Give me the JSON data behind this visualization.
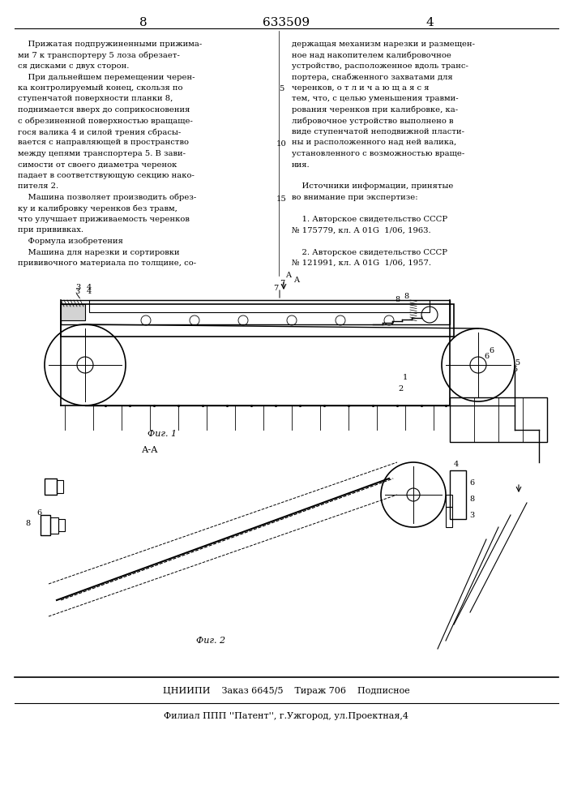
{
  "page_num_left": "8",
  "page_num_center": "633509",
  "page_num_right": "4",
  "col_left_text": [
    "    Прижатая подпружиненными прижима-",
    "ми 7 к транспортеру 5 лоза обрезает-",
    "ся дисками с двух сторон.",
    "    При дальнейшем перемещении черен-",
    "ка контролируемый конец, скользя по",
    "ступенчатой поверхности планки 8,",
    "поднимается вверх до соприкосновения",
    "с обрезиненной поверхностью вращаще-",
    "гося валика 4 и силой трения сбрасы-",
    "вается с направляющей в пространство",
    "между цепями транспортера 5. В зави-",
    "симости от своего диаметра черенок",
    "падает в соответствующую секцию нако-",
    "пителя 2.",
    "    Машина позволяет производить обрез-",
    "ку и калибровку черенков без травм,",
    "что улучшает приживаемость черенков",
    "при прививках.",
    "    Формула изобретения",
    "    Машина для нарезки и сортировки",
    "прививочного материала по толщине, со-"
  ],
  "col_right_text": [
    "держащая механизм нарезки и размещен-",
    "ное над накопителем калибровочное",
    "устройство, расположенное вдоль транс-",
    "портера, снабженного захватами для",
    "черенков, о т л и ч а ю щ а я с я",
    "тем, что, с целью уменьшения травми-",
    "рования черенков при калибровке, ка-",
    "либровочное устройство выполнено в",
    "виде ступенчатой неподвижной пласти-",
    "ны и расположенного над ней валика,",
    "установленного с возможностью враще-",
    "ния.",
    "",
    "    Источники информации, принятые",
    "во внимание при экспертизе:",
    "",
    "    1. Авторское свидетельство СССР",
    "№ 175779, кл. А 01G  1/06, 1963.",
    "",
    "    2. Авторское свидетельство СССР",
    "№ 121991, кл. А 01G  1/06, 1957."
  ],
  "line_number_5": "5",
  "line_number_10": "10",
  "line_number_15": "15",
  "fig1_label": "Фиг. 1",
  "fig2_label": "Фиг. 2",
  "section_label": "А-А",
  "bottom_line1": "ЦНИИПИ    Заказ 6645/5    Тираж 706    Подписное",
  "bottom_line2": "Филиал ППП ''Патент'', г.Ужгород, ул.Проектная,4",
  "bg_color": "#ffffff",
  "text_color": "#000000",
  "line_color": "#000000"
}
